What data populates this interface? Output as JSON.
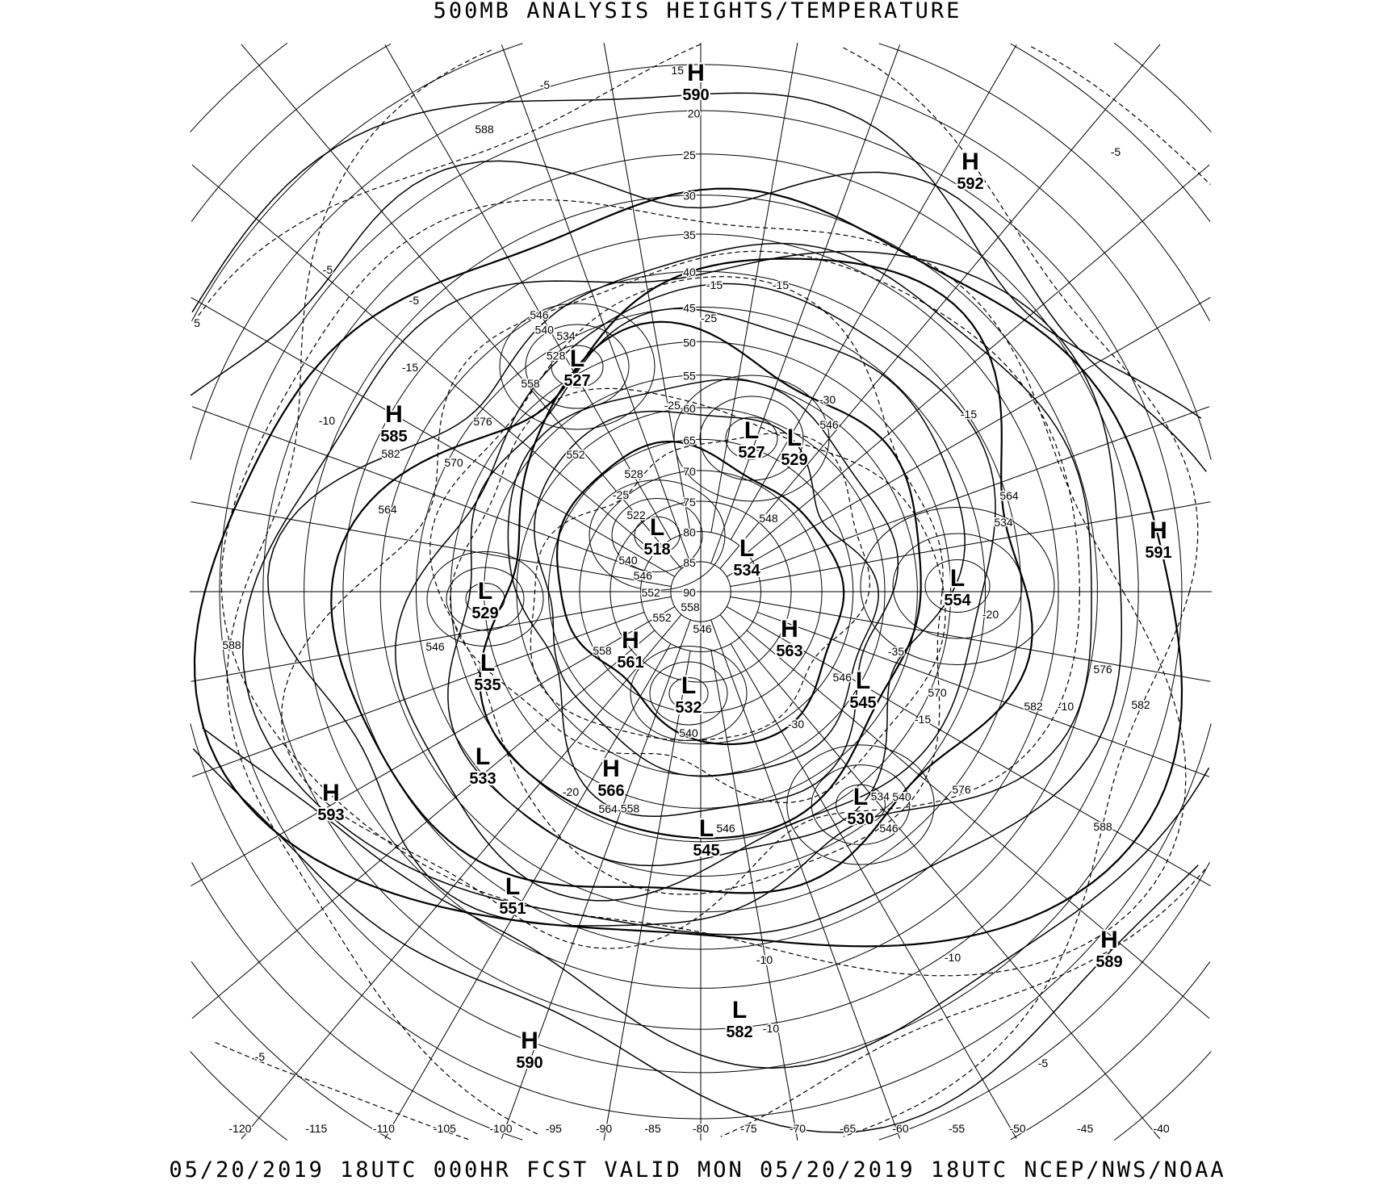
{
  "title": "500MB ANALYSIS  HEIGHTS/TEMPERATURE",
  "footer": "05/20/2019 18UTC 000HR FCST VALID MON 05/20/2019 18UTC  NCEP/NWS/NOAA",
  "projection": "polar stereographic, north pole centered",
  "colors": {
    "background": "#ffffff",
    "lines": "#000000"
  },
  "longitude_labels": [
    "-120",
    "-115",
    "-110",
    "-105",
    "-100",
    "-95",
    "-90",
    "-85",
    "-80",
    "-75",
    "-70",
    "-65",
    "-60",
    "-55",
    "-50",
    "-45",
    "-40"
  ],
  "latitude_labels": [
    "15",
    "20",
    "25",
    "30",
    "35",
    "40",
    "45",
    "50",
    "55",
    "60",
    "65",
    "70",
    "75",
    "80",
    "85",
    "90"
  ],
  "pressure_centers": [
    {
      "type": "H",
      "value": "590"
    },
    {
      "type": "H",
      "value": "592"
    },
    {
      "type": "L",
      "value": "527"
    },
    {
      "type": "H",
      "value": "585"
    },
    {
      "type": "L",
      "value": "527"
    },
    {
      "type": "L",
      "value": "529"
    },
    {
      "type": "L",
      "value": "518"
    },
    {
      "type": "L",
      "value": "534"
    },
    {
      "type": "H",
      "value": "591"
    },
    {
      "type": "L",
      "value": "554"
    },
    {
      "type": "L",
      "value": "529"
    },
    {
      "type": "H",
      "value": "563"
    },
    {
      "type": "H",
      "value": "561"
    },
    {
      "type": "L",
      "value": "535"
    },
    {
      "type": "L",
      "value": "532"
    },
    {
      "type": "L",
      "value": "545"
    },
    {
      "type": "L",
      "value": "533"
    },
    {
      "type": "H",
      "value": "566"
    },
    {
      "type": "H",
      "value": "593"
    },
    {
      "type": "L",
      "value": "530"
    },
    {
      "type": "L",
      "value": "545"
    },
    {
      "type": "L",
      "value": "551"
    },
    {
      "type": "H",
      "value": "589"
    },
    {
      "type": "L",
      "value": "582"
    },
    {
      "type": "H",
      "value": "590"
    }
  ],
  "height_contour_labels": [
    "588",
    "546",
    "540",
    "534",
    "528",
    "558",
    "576",
    "582",
    "570",
    "552",
    "564",
    "528",
    "522",
    "540",
    "546",
    "548",
    "546",
    "534",
    "564",
    "558",
    "552",
    "546",
    "558",
    "546",
    "540",
    "558",
    "564",
    "546",
    "570",
    "576",
    "582",
    "588",
    "576",
    "546",
    "540",
    "534",
    "552",
    "588",
    "582",
    "546"
  ],
  "temperature_contour_labels": [
    "-5",
    "-5",
    "-5",
    "-5",
    "-15",
    "-10",
    "-15",
    "-25",
    "-30",
    "-15",
    "-15",
    "-25",
    "-35",
    "-20",
    "-15",
    "-10",
    "-30",
    "-20",
    "-10",
    "-10",
    "-10",
    "-5",
    "-5",
    "5",
    "-25"
  ]
}
